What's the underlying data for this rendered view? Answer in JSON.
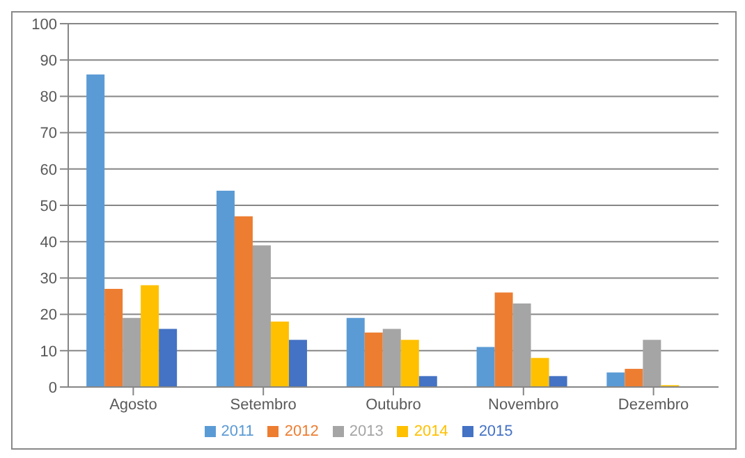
{
  "chart_data": {
    "type": "bar",
    "categories": [
      "Agosto",
      "Setembro",
      "Outubro",
      "Novembro",
      "Dezembro"
    ],
    "series": [
      {
        "name": "2011",
        "color": "#5b9bd5",
        "values": [
          86,
          54,
          19,
          11,
          4
        ]
      },
      {
        "name": "2012",
        "color": "#ed7d31",
        "values": [
          27,
          47,
          15,
          26,
          5
        ]
      },
      {
        "name": "2013",
        "color": "#a5a5a5",
        "values": [
          19,
          39,
          16,
          23,
          13
        ]
      },
      {
        "name": "2014",
        "color": "#ffc000",
        "values": [
          28,
          18,
          13,
          8,
          0.5
        ]
      },
      {
        "name": "2015",
        "color": "#4472c4",
        "values": [
          16,
          13,
          3,
          3,
          0
        ]
      }
    ],
    "ylim": [
      0,
      100
    ],
    "yticks": [
      0,
      10,
      20,
      30,
      40,
      50,
      60,
      70,
      80,
      90,
      100
    ],
    "grid": "y",
    "legend": "bottom"
  }
}
